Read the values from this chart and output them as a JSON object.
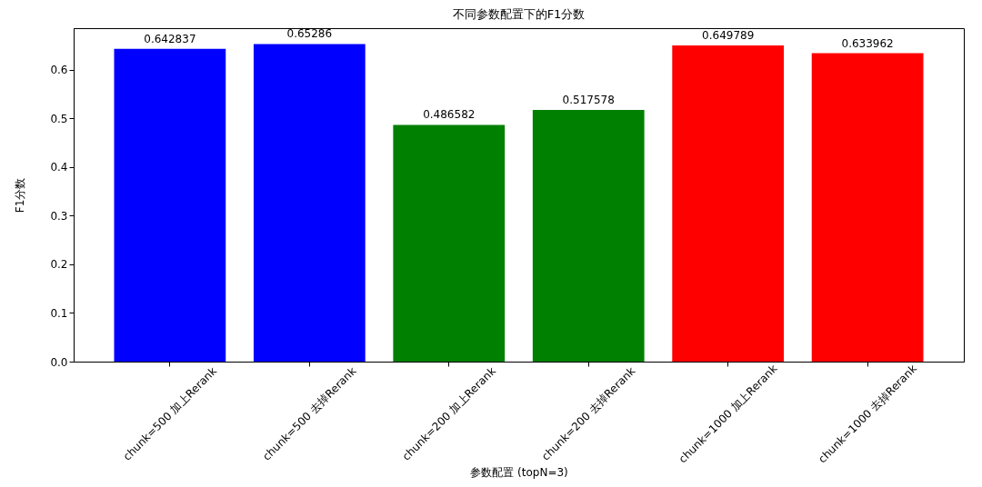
{
  "chart_data": {
    "type": "bar",
    "title": "不同参数配置下的F1分数",
    "xlabel": "参数配置 (topN=3)",
    "ylabel": "F1分数",
    "categories": [
      "chunk=500 加上Rerank",
      "chunk=500 去掉Rerank",
      "chunk=200 加上Rerank",
      "chunk=200 去掉Rerank",
      "chunk=1000 加上Rerank",
      "chunk=1000 去掉Rerank"
    ],
    "values": [
      0.642837,
      0.65286,
      0.486582,
      0.517578,
      0.649789,
      0.633962
    ],
    "colors": [
      "#0000ff",
      "#0000ff",
      "#008000",
      "#008000",
      "#ff0000",
      "#ff0000"
    ],
    "ylim": [
      0,
      0.6855
    ],
    "yticks": [
      {
        "value": 0,
        "label": "0.0"
      },
      0.1,
      0.2,
      0.3,
      0.4,
      0.5,
      0.6
    ],
    "data_labels": true
  }
}
